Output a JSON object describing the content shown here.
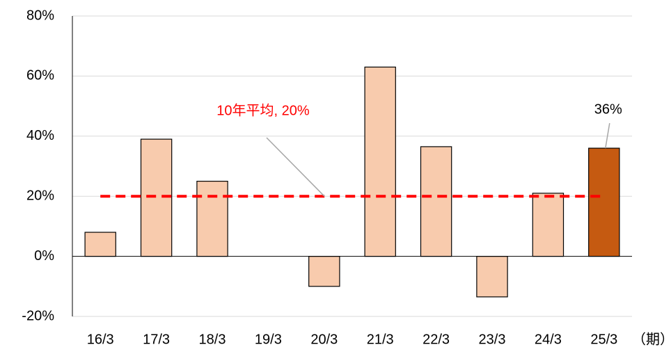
{
  "chart_data": {
    "type": "bar",
    "categories": [
      "16/3",
      "17/3",
      "18/3",
      "19/3",
      "20/3",
      "21/3",
      "22/3",
      "23/3",
      "24/3",
      "25/3"
    ],
    "values": [
      8,
      39,
      25,
      0,
      -10,
      63,
      36.5,
      -13.5,
      21,
      36
    ],
    "value_labels": [
      null,
      null,
      null,
      null,
      null,
      null,
      null,
      null,
      null,
      "36%"
    ],
    "colors": [
      "#f8cbad",
      "#f8cbad",
      "#f8cbad",
      "#f8cbad",
      "#f8cbad",
      "#f8cbad",
      "#f8cbad",
      "#f8cbad",
      "#f8cbad",
      "#c55a11"
    ],
    "x_unit": "（期）",
    "average": {
      "label": "10年平均, 20%",
      "value": 20,
      "color": "#ff0000"
    },
    "ylim": [
      -20,
      80
    ],
    "yticks": [
      {
        "value": -20,
        "label": "-20%"
      },
      {
        "value": 0,
        "label": "0%"
      },
      {
        "value": 20,
        "label": "20%"
      },
      {
        "value": 40,
        "label": "40%"
      },
      {
        "value": 60,
        "label": "60%"
      },
      {
        "value": 80,
        "label": "80%"
      }
    ],
    "grid": true
  }
}
